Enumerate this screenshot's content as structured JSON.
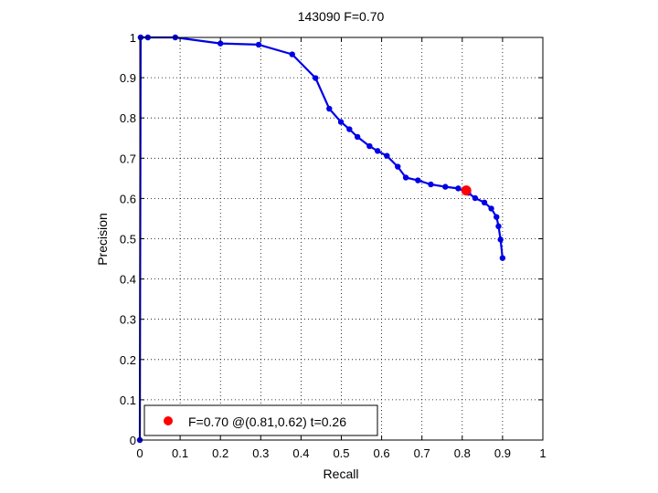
{
  "chart_data": {
    "type": "line",
    "title": "143090 F=0.70",
    "xlabel": "Recall",
    "ylabel": "Precision",
    "xlim": [
      0,
      1
    ],
    "ylim": [
      0,
      1
    ],
    "grid": true,
    "xticks": [
      "0",
      "0.1",
      "0.2",
      "0.3",
      "0.4",
      "0.5",
      "0.6",
      "0.7",
      "0.8",
      "0.9",
      "1"
    ],
    "yticks": [
      "0",
      "0.1",
      "0.2",
      "0.3",
      "0.4",
      "0.5",
      "0.6",
      "0.7",
      "0.8",
      "0.9",
      "1"
    ],
    "series": [
      {
        "color": "#0000e6",
        "x": [
          0,
          0.002,
          0.02,
          0.088,
          0.2,
          0.295,
          0.378,
          0.436,
          0.47,
          0.499,
          0.52,
          0.54,
          0.57,
          0.59,
          0.613,
          0.64,
          0.66,
          0.69,
          0.722,
          0.758,
          0.79,
          0.815,
          0.832,
          0.855,
          0.872,
          0.885,
          0.89,
          0.895,
          0.9
        ],
        "y": [
          0,
          1,
          1,
          1,
          0.985,
          0.982,
          0.958,
          0.899,
          0.823,
          0.79,
          0.772,
          0.753,
          0.73,
          0.718,
          0.706,
          0.679,
          0.652,
          0.645,
          0.635,
          0.629,
          0.625,
          0.614,
          0.601,
          0.59,
          0.575,
          0.554,
          0.531,
          0.498,
          0.452
        ]
      }
    ],
    "marker": {
      "color": "#ff0000",
      "x": 0.81,
      "y": 0.62
    },
    "legend": {
      "position": "bottom-left",
      "label": "F=0.70 @(0.81,0.62) t=0.26"
    }
  }
}
